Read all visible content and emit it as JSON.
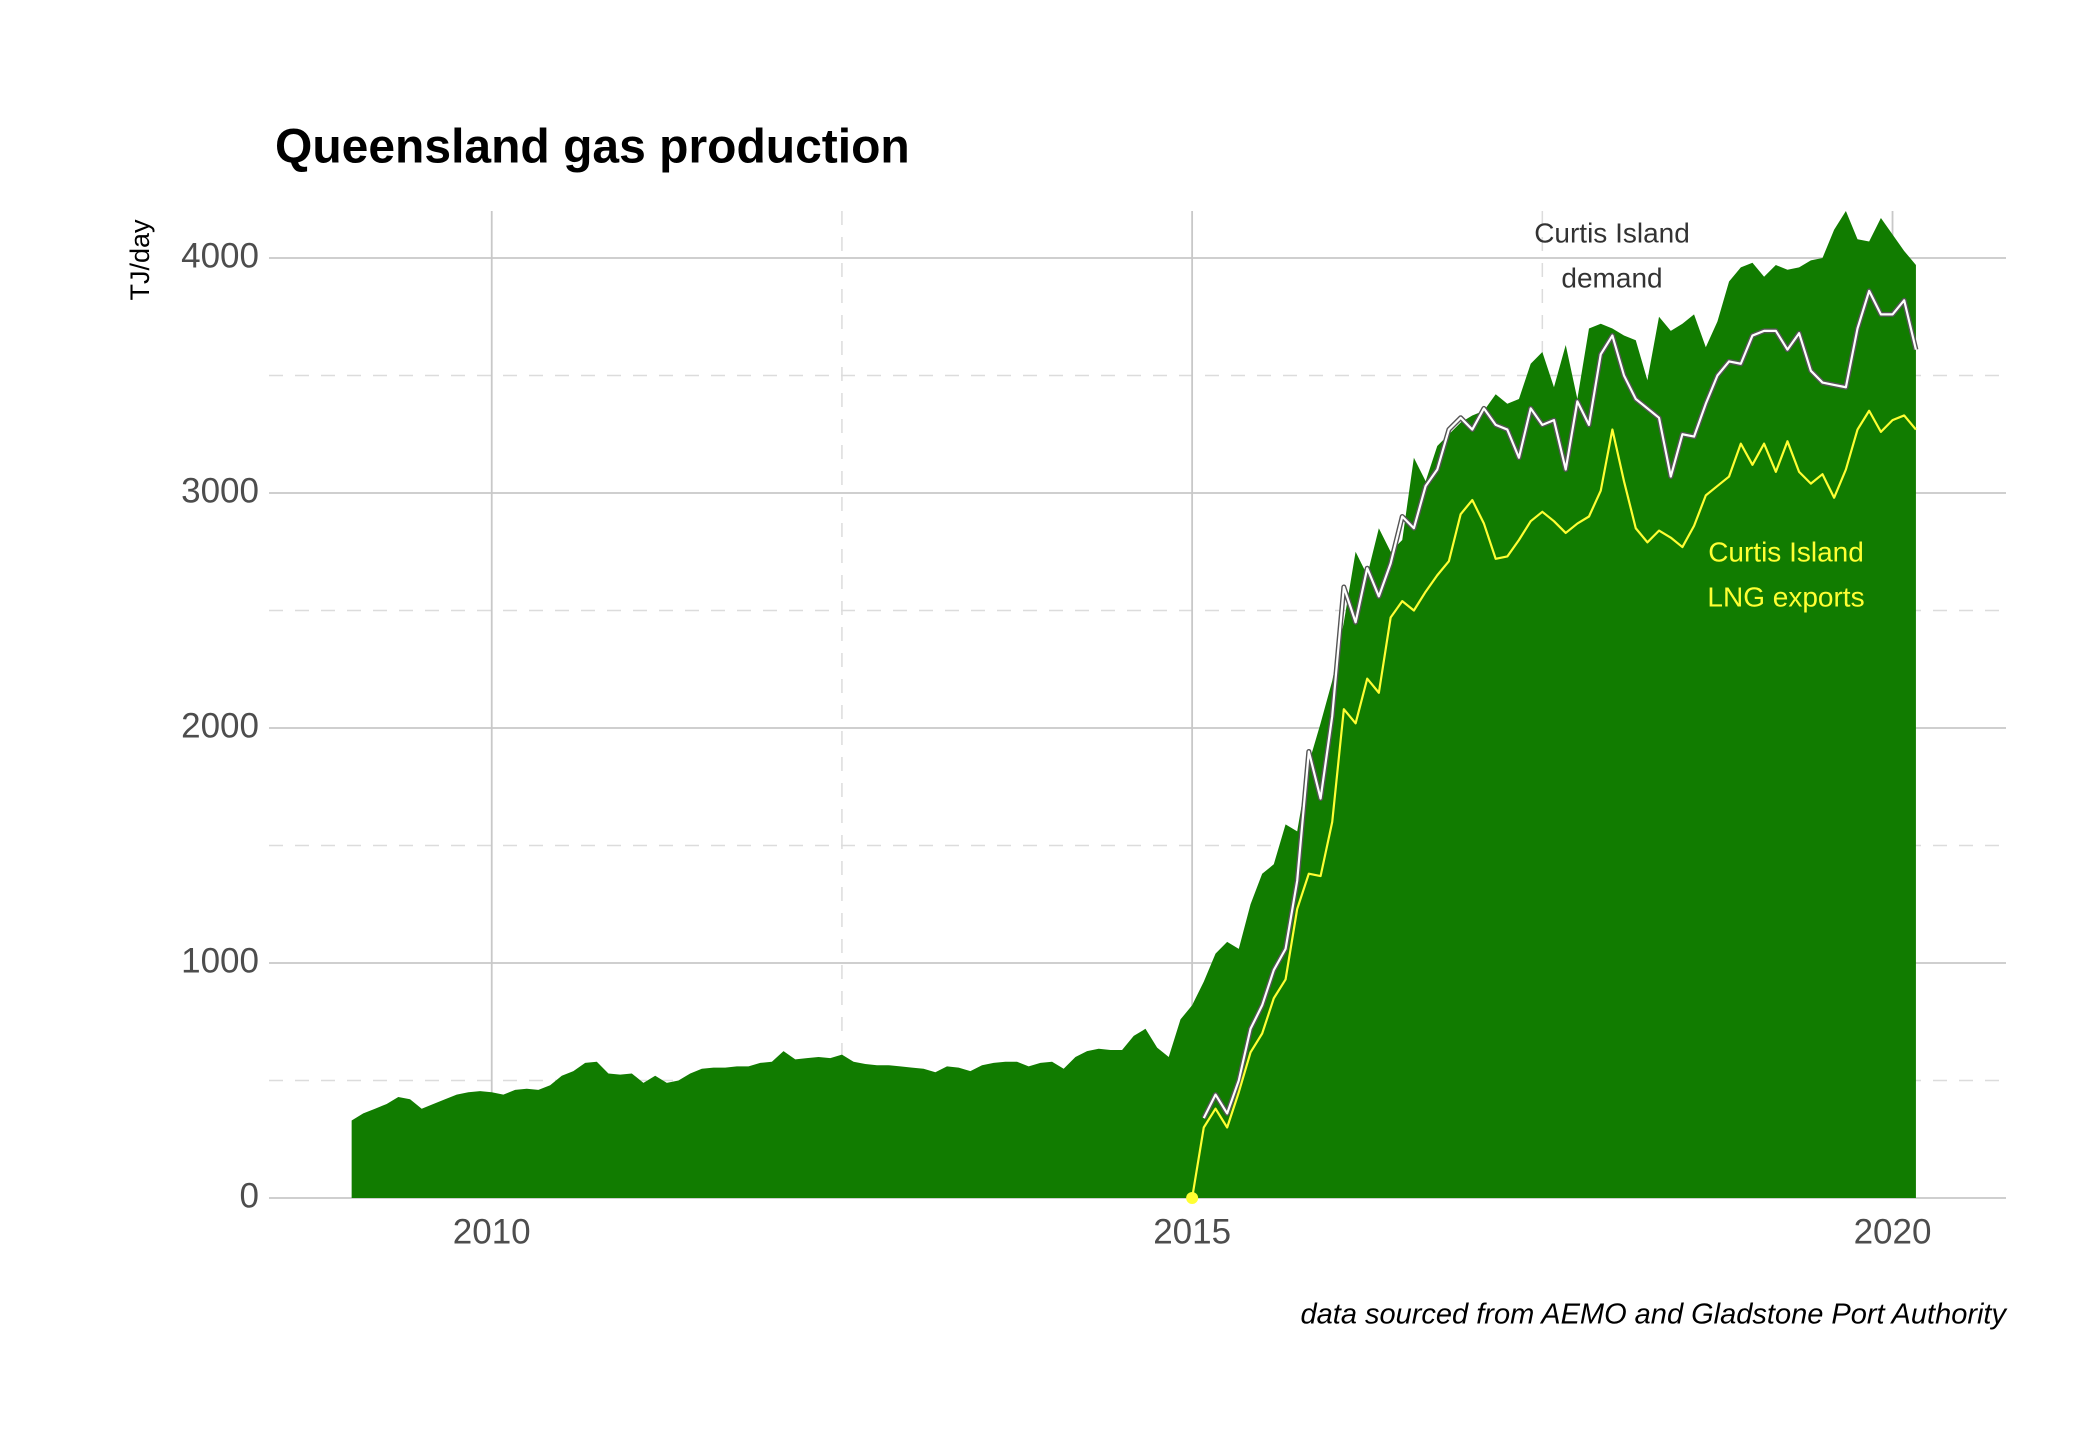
{
  "chart_data": {
    "type": "area",
    "title": "Queensland gas production",
    "y_label": "TJ/day",
    "caption": "data sourced from AEMO and Gladstone Port Authority",
    "xlim": [
      2008.41,
      2020.81
    ],
    "ylim": [
      0,
      4200
    ],
    "xticks": [
      2010,
      2015,
      2020
    ],
    "yticks": [
      0,
      1000,
      2000,
      3000,
      4000
    ],
    "x_minor_ticks": [
      2012.5,
      2017.5
    ],
    "y_minor_ticks": [
      500,
      1500,
      2500,
      3500
    ],
    "grid": true,
    "series": [
      {
        "type": "area",
        "color": "#117c00",
        "x": [
          2009,
          2009.083,
          2009.167,
          2009.25,
          2009.333,
          2009.417,
          2009.5,
          2009.583,
          2009.667,
          2009.75,
          2009.833,
          2009.917,
          2010,
          2010.083,
          2010.167,
          2010.25,
          2010.333,
          2010.417,
          2010.5,
          2010.583,
          2010.667,
          2010.75,
          2010.833,
          2010.917,
          2011,
          2011.083,
          2011.167,
          2011.25,
          2011.333,
          2011.417,
          2011.5,
          2011.583,
          2011.667,
          2011.75,
          2011.833,
          2011.917,
          2012,
          2012.083,
          2012.167,
          2012.25,
          2012.333,
          2012.417,
          2012.5,
          2012.583,
          2012.667,
          2012.75,
          2012.833,
          2012.917,
          2013,
          2013.083,
          2013.167,
          2013.25,
          2013.333,
          2013.417,
          2013.5,
          2013.583,
          2013.667,
          2013.75,
          2013.833,
          2013.917,
          2014,
          2014.083,
          2014.167,
          2014.25,
          2014.333,
          2014.417,
          2014.5,
          2014.583,
          2014.667,
          2014.75,
          2014.833,
          2014.917,
          2015,
          2015.083,
          2015.167,
          2015.25,
          2015.333,
          2015.417,
          2015.5,
          2015.583,
          2015.667,
          2015.75,
          2015.833,
          2015.917,
          2016,
          2016.083,
          2016.167,
          2016.25,
          2016.333,
          2016.417,
          2016.5,
          2016.583,
          2016.667,
          2016.75,
          2016.833,
          2016.917,
          2017,
          2017.083,
          2017.167,
          2017.25,
          2017.333,
          2017.417,
          2017.5,
          2017.583,
          2017.667,
          2017.75,
          2017.833,
          2017.917,
          2018,
          2018.083,
          2018.167,
          2018.25,
          2018.333,
          2018.417,
          2018.5,
          2018.583,
          2018.667,
          2018.75,
          2018.833,
          2018.917,
          2019,
          2019.083,
          2019.167,
          2019.25,
          2019.333,
          2019.417,
          2019.5,
          2019.583,
          2019.667,
          2019.75,
          2019.833,
          2019.917,
          2020,
          2020.083,
          2020.167
        ],
        "values": [
          330,
          360,
          380,
          400,
          430,
          420,
          380,
          400,
          420,
          440,
          450,
          455,
          450,
          440,
          460,
          465,
          460,
          480,
          520,
          540,
          575,
          580,
          530,
          525,
          530,
          490,
          520,
          490,
          500,
          530,
          550,
          555,
          555,
          560,
          560,
          575,
          580,
          625,
          590,
          595,
          600,
          595,
          610,
          580,
          570,
          565,
          565,
          560,
          555,
          550,
          535,
          560,
          555,
          540,
          565,
          575,
          580,
          580,
          560,
          575,
          580,
          550,
          600,
          625,
          635,
          630,
          630,
          690,
          720,
          640,
          600,
          760,
          820,
          920,
          1040,
          1090,
          1060,
          1250,
          1380,
          1420,
          1590,
          1560,
          1850,
          2020,
          2200,
          2450,
          2750,
          2650,
          2850,
          2750,
          2800,
          3150,
          3050,
          3200,
          3250,
          3300,
          3330,
          3350,
          3420,
          3380,
          3400,
          3550,
          3600,
          3450,
          3630,
          3400,
          3700,
          3720,
          3700,
          3670,
          3650,
          3480,
          3750,
          3690,
          3720,
          3760,
          3620,
          3730,
          3900,
          3960,
          3980,
          3920,
          3970,
          3950,
          3960,
          3990,
          4000,
          4120,
          4200,
          4080,
          4070,
          4170,
          4100,
          4030,
          3970
        ]
      },
      {
        "type": "line",
        "color": "#ffffff",
        "outline": "#555555",
        "label": [
          "Curtis Island",
          "demand"
        ],
        "label_color": "#333333",
        "x": [
          2015.083,
          2015.167,
          2015.25,
          2015.333,
          2015.417,
          2015.5,
          2015.583,
          2015.667,
          2015.75,
          2015.833,
          2015.917,
          2016,
          2016.083,
          2016.167,
          2016.25,
          2016.333,
          2016.417,
          2016.5,
          2016.583,
          2016.667,
          2016.75,
          2016.833,
          2016.917,
          2017,
          2017.083,
          2017.167,
          2017.25,
          2017.333,
          2017.417,
          2017.5,
          2017.583,
          2017.667,
          2017.75,
          2017.833,
          2017.917,
          2018,
          2018.083,
          2018.167,
          2018.25,
          2018.333,
          2018.417,
          2018.5,
          2018.583,
          2018.667,
          2018.75,
          2018.833,
          2018.917,
          2019,
          2019.083,
          2019.167,
          2019.25,
          2019.333,
          2019.417,
          2019.5,
          2019.583,
          2019.667,
          2019.75,
          2019.833,
          2019.917,
          2020,
          2020.083,
          2020.167
        ],
        "values": [
          340,
          440,
          360,
          500,
          720,
          820,
          970,
          1060,
          1350,
          1900,
          1700,
          2050,
          2600,
          2450,
          2680,
          2560,
          2700,
          2900,
          2850,
          3030,
          3100,
          3270,
          3320,
          3270,
          3360,
          3290,
          3270,
          3150,
          3360,
          3290,
          3310,
          3100,
          3390,
          3290,
          3590,
          3670,
          3500,
          3400,
          3360,
          3320,
          3070,
          3250,
          3240,
          3380,
          3500,
          3560,
          3550,
          3670,
          3690,
          3690,
          3610,
          3680,
          3520,
          3470,
          3460,
          3450,
          3700,
          3860,
          3760,
          3760,
          3820,
          3610
        ]
      },
      {
        "type": "line",
        "color": "#ffff33",
        "start_marker": true,
        "label": [
          "Curtis Island",
          "LNG exports"
        ],
        "label_color": "#ffff33",
        "x": [
          2015,
          2015.083,
          2015.167,
          2015.25,
          2015.333,
          2015.417,
          2015.5,
          2015.583,
          2015.667,
          2015.75,
          2015.833,
          2015.917,
          2016,
          2016.083,
          2016.167,
          2016.25,
          2016.333,
          2016.417,
          2016.5,
          2016.583,
          2016.667,
          2016.75,
          2016.833,
          2016.917,
          2017,
          2017.083,
          2017.167,
          2017.25,
          2017.333,
          2017.417,
          2017.5,
          2017.583,
          2017.667,
          2017.75,
          2017.833,
          2017.917,
          2018,
          2018.083,
          2018.167,
          2018.25,
          2018.333,
          2018.417,
          2018.5,
          2018.583,
          2018.667,
          2018.75,
          2018.833,
          2018.917,
          2019,
          2019.083,
          2019.167,
          2019.25,
          2019.333,
          2019.417,
          2019.5,
          2019.583,
          2019.667,
          2019.75,
          2019.833,
          2019.917,
          2020,
          2020.083,
          2020.167
        ],
        "values": [
          0,
          300,
          380,
          300,
          450,
          620,
          700,
          850,
          930,
          1230,
          1380,
          1370,
          1600,
          2080,
          2020,
          2210,
          2150,
          2470,
          2540,
          2500,
          2580,
          2650,
          2710,
          2910,
          2970,
          2870,
          2720,
          2730,
          2800,
          2880,
          2920,
          2880,
          2830,
          2870,
          2900,
          3010,
          3270,
          3050,
          2850,
          2790,
          2840,
          2810,
          2770,
          2860,
          2990,
          3030,
          3070,
          3210,
          3120,
          3210,
          3090,
          3220,
          3090,
          3040,
          3080,
          2980,
          3100,
          3270,
          3350,
          3260,
          3310,
          3330,
          3270
        ]
      }
    ]
  }
}
